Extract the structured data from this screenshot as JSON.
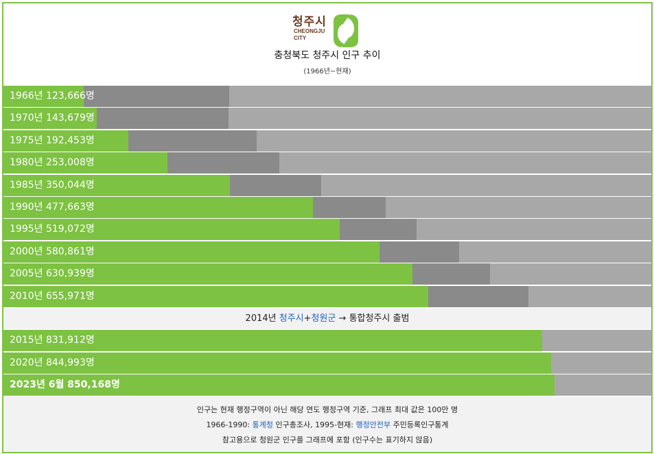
{
  "header": {
    "logo_ko": "청주시",
    "logo_en": "CHEONGJU\nCITY",
    "title": "충청북도 청주시 인구 추이",
    "subtitle": "(1966년~현재)"
  },
  "colors": {
    "green": "#7dc242",
    "comparison": "#8a8a8a",
    "track": "#a8a8a8",
    "brown": "#6b3a21",
    "link": "#1a62c7"
  },
  "chart_data": {
    "type": "bar",
    "orientation": "horizontal",
    "xlim": [
      0,
      1000000
    ],
    "rows": [
      {
        "label": "1966년 123,666명",
        "year": 1966,
        "value": 123666,
        "cmp_total": 348000
      },
      {
        "label": "1970년 143,679명",
        "year": 1970,
        "value": 143679,
        "cmp_total": 347000
      },
      {
        "label": "1975년 192,453명",
        "year": 1975,
        "value": 192453,
        "cmp_total": 391000
      },
      {
        "label": "1980년 253,008명",
        "year": 1980,
        "value": 253008,
        "cmp_total": 426000
      },
      {
        "label": "1985년 350,044명",
        "year": 1985,
        "value": 350044,
        "cmp_total": 490000
      },
      {
        "label": "1990년 477,663명",
        "year": 1990,
        "value": 477663,
        "cmp_total": 590000
      },
      {
        "label": "1995년 519,072명",
        "year": 1995,
        "value": 519072,
        "cmp_total": 638000
      },
      {
        "label": "2000년 580,861명",
        "year": 2000,
        "value": 580861,
        "cmp_total": 703000
      },
      {
        "label": "2005년 630,939명",
        "year": 2005,
        "value": 630939,
        "cmp_total": 751000
      },
      {
        "label": "2010년 655,971명",
        "year": 2010,
        "value": 655971,
        "cmp_total": 810000
      }
    ],
    "merge_note": {
      "prefix": "2014년 ",
      "city": "청주시",
      "plus": "+",
      "county": "청원군",
      "suffix": " → 통합청주시 출범"
    },
    "rows_after": [
      {
        "label": "2015년 831,912명",
        "year": 2015,
        "value": 831912
      },
      {
        "label": "2020년 844,993명",
        "year": 2020,
        "value": 844993
      },
      {
        "label": "2023년 6월 850,168명",
        "year": 2023,
        "value": 850168,
        "bold": true
      }
    ]
  },
  "footer": {
    "line1": "인구는 현재 행정구역이 아닌 해당 연도 행정구역 기준, 그래프 최대 값은 100만 명",
    "line2_a": "1966-1990: ",
    "line2_link1": "통계청",
    "line2_b": " 인구총조사, 1995-현재: ",
    "line2_link2": "행정안전부",
    "line2_c": " 주민등록인구통계",
    "line3": "참고용으로 청원군 인구를 그래프에 포함 (인구수는 표기하지 않음)"
  }
}
